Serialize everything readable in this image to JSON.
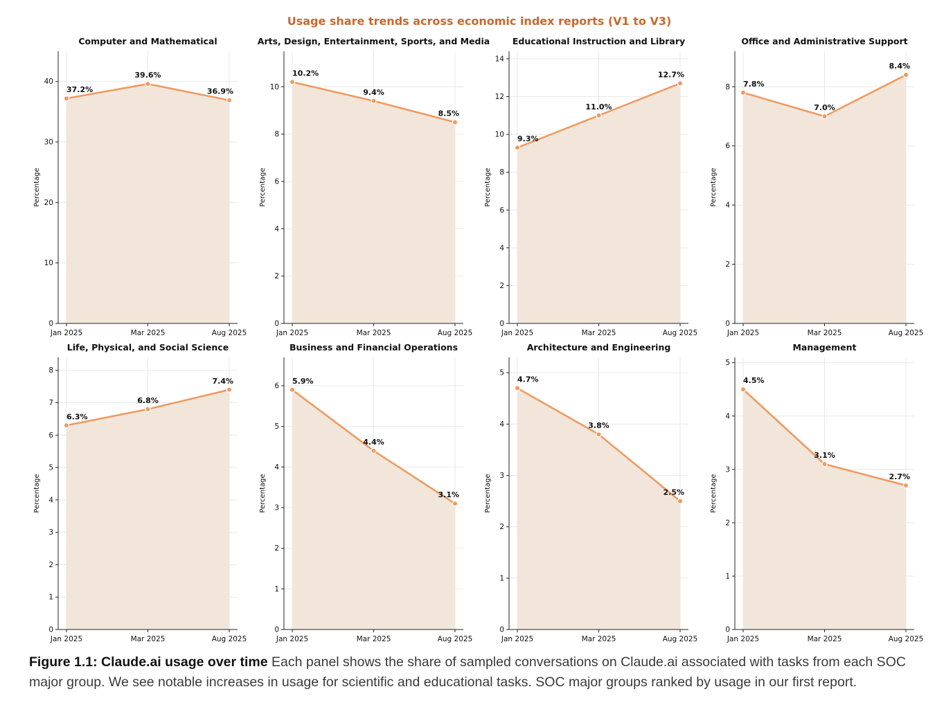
{
  "figure": {
    "suptitle": "Usage share trends across economic index reports (V1 to V3)",
    "caption_title": "Figure 1.1: Claude.ai usage over time",
    "caption_text": " Each panel shows the share of sampled conversations on Claude.ai associated with tasks from each SOC major group. We see notable increases in usage for scientific and educational tasks. SOC major groups ranked by usage in our first report."
  },
  "colors": {
    "line": "#ef9a62",
    "fill": "#f1e6d9",
    "suptitle": "#c8692b",
    "grid": "#e8e8e8"
  },
  "chart_data": [
    {
      "type": "area",
      "title": "Computer and Mathematical",
      "categories": [
        "Jan 2025",
        "Mar 2025",
        "Aug 2025"
      ],
      "values": [
        37.2,
        39.6,
        36.9
      ],
      "labels": [
        "37.2%",
        "39.6%",
        "36.9%"
      ],
      "ylabel": "Percentage",
      "ylim": [
        0,
        45
      ],
      "yticks": [
        0,
        10,
        20,
        30,
        40
      ],
      "grid": true
    },
    {
      "type": "area",
      "title": "Arts, Design, Entertainment, Sports, and Media",
      "categories": [
        "Jan 2025",
        "Mar 2025",
        "Aug 2025"
      ],
      "values": [
        10.2,
        9.4,
        8.5
      ],
      "labels": [
        "10.2%",
        "9.4%",
        "8.5%"
      ],
      "ylabel": "Percentage",
      "ylim": [
        0,
        11.5
      ],
      "yticks": [
        0,
        2,
        4,
        6,
        8,
        10
      ],
      "grid": true
    },
    {
      "type": "area",
      "title": "Educational Instruction and Library",
      "categories": [
        "Jan 2025",
        "Mar 2025",
        "Aug 2025"
      ],
      "values": [
        9.3,
        11.0,
        12.7
      ],
      "labels": [
        "9.3%",
        "11.0%",
        "12.7%"
      ],
      "ylabel": "Percentage",
      "ylim": [
        0,
        14.4
      ],
      "yticks": [
        0,
        2,
        4,
        6,
        8,
        10,
        12,
        14
      ],
      "grid": true
    },
    {
      "type": "area",
      "title": "Office and Administrative Support",
      "categories": [
        "Jan 2025",
        "Mar 2025",
        "Aug 2025"
      ],
      "values": [
        7.8,
        7.0,
        8.4
      ],
      "labels": [
        "7.8%",
        "7.0%",
        "8.4%"
      ],
      "ylabel": "Percentage",
      "ylim": [
        0,
        9.2
      ],
      "yticks": [
        0,
        2,
        4,
        6,
        8
      ],
      "grid": true
    },
    {
      "type": "area",
      "title": "Life, Physical, and Social Science",
      "categories": [
        "Jan 2025",
        "Mar 2025",
        "Aug 2025"
      ],
      "values": [
        6.3,
        6.8,
        7.4
      ],
      "labels": [
        "6.3%",
        "6.8%",
        "7.4%"
      ],
      "ylabel": "Percentage",
      "ylim": [
        0,
        8.4
      ],
      "yticks": [
        0,
        1,
        2,
        3,
        4,
        5,
        6,
        7,
        8
      ],
      "grid": true
    },
    {
      "type": "area",
      "title": "Business and Financial Operations",
      "categories": [
        "Jan 2025",
        "Mar 2025",
        "Aug 2025"
      ],
      "values": [
        5.9,
        4.4,
        3.1
      ],
      "labels": [
        "5.9%",
        "4.4%",
        "3.1%"
      ],
      "ylabel": "Percentage",
      "ylim": [
        0,
        6.7
      ],
      "yticks": [
        0,
        1,
        2,
        3,
        4,
        5,
        6
      ],
      "grid": true
    },
    {
      "type": "area",
      "title": "Architecture and Engineering",
      "categories": [
        "Jan 2025",
        "Mar 2025",
        "Aug 2025"
      ],
      "values": [
        4.7,
        3.8,
        2.5
      ],
      "labels": [
        "4.7%",
        "3.8%",
        "2.5%"
      ],
      "ylabel": "Percentage",
      "ylim": [
        0,
        5.3
      ],
      "yticks": [
        0,
        1,
        2,
        3,
        4,
        5
      ],
      "grid": true
    },
    {
      "type": "area",
      "title": "Management",
      "categories": [
        "Jan 2025",
        "Mar 2025",
        "Aug 2025"
      ],
      "values": [
        4.5,
        3.1,
        2.7
      ],
      "labels": [
        "4.5%",
        "3.1%",
        "2.7%"
      ],
      "ylabel": "Percentage",
      "ylim": [
        0,
        5.1
      ],
      "yticks": [
        0,
        1,
        2,
        3,
        4,
        5
      ],
      "grid": true
    }
  ]
}
